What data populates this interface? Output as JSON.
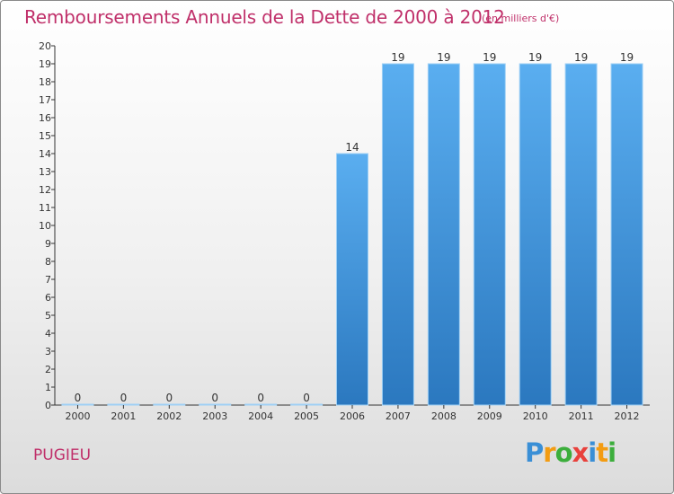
{
  "chart_data": {
    "type": "bar",
    "title": "Remboursements Annuels de la Dette de 2000 à 2012",
    "unit_note": "(en milliers d'€)",
    "categories": [
      "2000",
      "2001",
      "2002",
      "2003",
      "2004",
      "2005",
      "2006",
      "2007",
      "2008",
      "2009",
      "2010",
      "2011",
      "2012"
    ],
    "values": [
      0,
      0,
      0,
      0,
      0,
      0,
      14,
      19,
      19,
      19,
      19,
      19,
      19
    ],
    "value_labels": [
      "0",
      "0",
      "0",
      "0",
      "0",
      "0",
      "14",
      "19",
      "19",
      "19",
      "19",
      "19",
      "19"
    ],
    "y_ticks": [
      "0",
      "1",
      "2",
      "3",
      "4",
      "5",
      "6",
      "7",
      "8",
      "9",
      "10",
      "11",
      "12",
      "13",
      "14",
      "15",
      "16",
      "17",
      "18",
      "19",
      "20"
    ],
    "ylim": [
      0,
      20
    ],
    "xlabel": "",
    "ylabel": "",
    "bar_color": "#3c8fd2"
  },
  "footer": {
    "town": "PUGIEU",
    "logo_letters": [
      "P",
      "r",
      "o",
      "x",
      "i",
      "t",
      "i"
    ],
    "logo_colors": [
      "#3a8fd6",
      "#f39c12",
      "#3cae3c",
      "#e8413c",
      "#3a8fd6",
      "#f39c12",
      "#3cae3c"
    ]
  }
}
